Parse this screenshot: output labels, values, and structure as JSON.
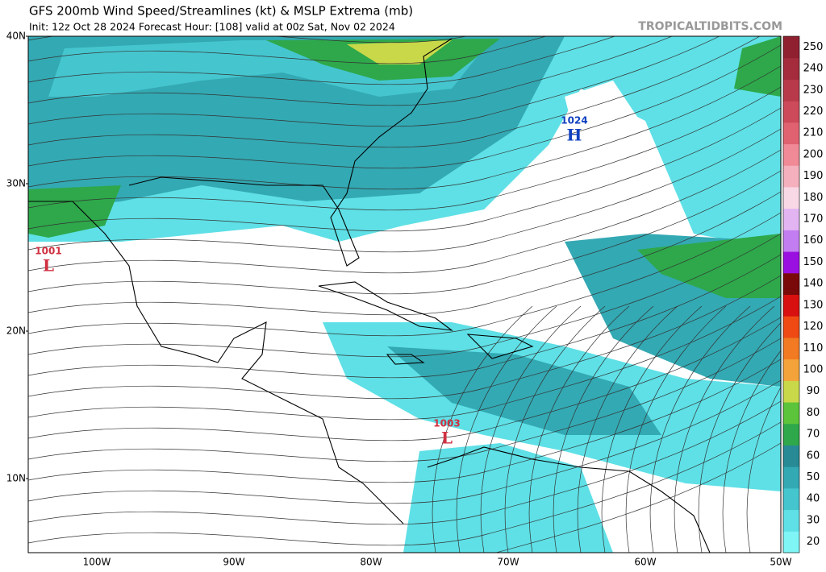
{
  "header": {
    "title": "GFS 200mb Wind Speed/Streamlines (kt) & MSLP Extrema (mb)",
    "subtitle": "Init: 12z Oct 28 2024   Forecast Hour: [108]   valid at 00z Sat, Nov 02 2024",
    "watermark": "TROPICALTIDBITS.COM"
  },
  "map": {
    "lat_labels": [
      "40N",
      "30N",
      "20N",
      "10N"
    ],
    "lon_labels": [
      "100W",
      "90W",
      "80W",
      "70W",
      "60W",
      "50W"
    ],
    "extrema": [
      {
        "pressure": "1001",
        "symbol": "L",
        "color": "#d03040"
      },
      {
        "pressure": "1024",
        "symbol": "H",
        "color": "#1040c0"
      },
      {
        "pressure": "1003",
        "symbol": "L",
        "color": "#d03040"
      }
    ]
  },
  "colorbar": {
    "ticks": [
      "20",
      "30",
      "40",
      "50",
      "60",
      "70",
      "80",
      "90",
      "100",
      "110",
      "120",
      "130",
      "140",
      "150",
      "160",
      "170",
      "180",
      "190",
      "200",
      "210",
      "220",
      "230",
      "240",
      "250"
    ],
    "colors": [
      "#7ff5f5",
      "#5ee0e6",
      "#45c6cf",
      "#33a9b3",
      "#288a94",
      "#2ea84a",
      "#5cc43a",
      "#c8d848",
      "#f4a33a",
      "#f27a22",
      "#ef4a14",
      "#d81010",
      "#7a0a0a",
      "#9a10e0",
      "#c27ef0",
      "#e2b4f2",
      "#f8d8e4",
      "#f4b0bc",
      "#f08a96",
      "#e06270",
      "#cc4a5a",
      "#b83a4a",
      "#a42c3c",
      "#902030"
    ]
  }
}
